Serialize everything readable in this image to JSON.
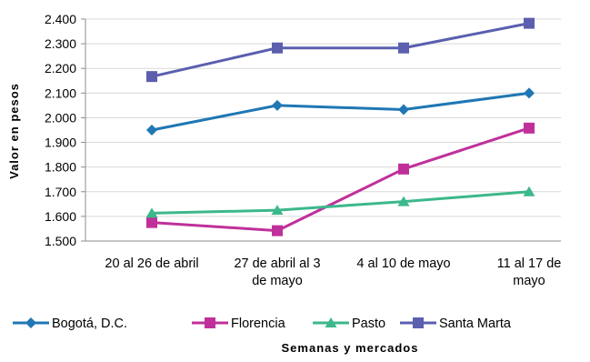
{
  "chart_data": {
    "type": "line",
    "title": "",
    "xlabel": "Semanas y mercados",
    "ylabel": "Valor en pesos",
    "categories": [
      [
        "20 al 26 de abril"
      ],
      [
        "27 de abril al 3",
        "de mayo"
      ],
      [
        "4 al 10 de mayo"
      ],
      [
        "11 al 17 de",
        "mayo"
      ]
    ],
    "ylim": [
      1500,
      2400
    ],
    "yticks": [
      1500,
      1600,
      1700,
      1800,
      1900,
      2000,
      2100,
      2200,
      2300,
      2400
    ],
    "ytick_labels": [
      "1.500",
      "1.600",
      "1.700",
      "1.800",
      "1.900",
      "2.000",
      "2.100",
      "2.200",
      "2.300",
      "2.400"
    ],
    "grid": true,
    "legend_position": "bottom",
    "series": [
      {
        "name": "Bogotá, D.C.",
        "values": [
          1950,
          2050,
          2033,
          2100
        ],
        "color": "#1F77B4",
        "marker": "diamond"
      },
      {
        "name": "Florencia",
        "values": [
          1575,
          1542,
          1792,
          1958
        ],
        "color": "#C0309A",
        "marker": "square"
      },
      {
        "name": "Pasto",
        "values": [
          1613,
          1625,
          1660,
          1700
        ],
        "color": "#3CB88A",
        "marker": "triangle"
      },
      {
        "name": "Santa Marta",
        "values": [
          2167,
          2283,
          2283,
          2383
        ],
        "color": "#5B5FAE",
        "marker": "square"
      }
    ]
  }
}
